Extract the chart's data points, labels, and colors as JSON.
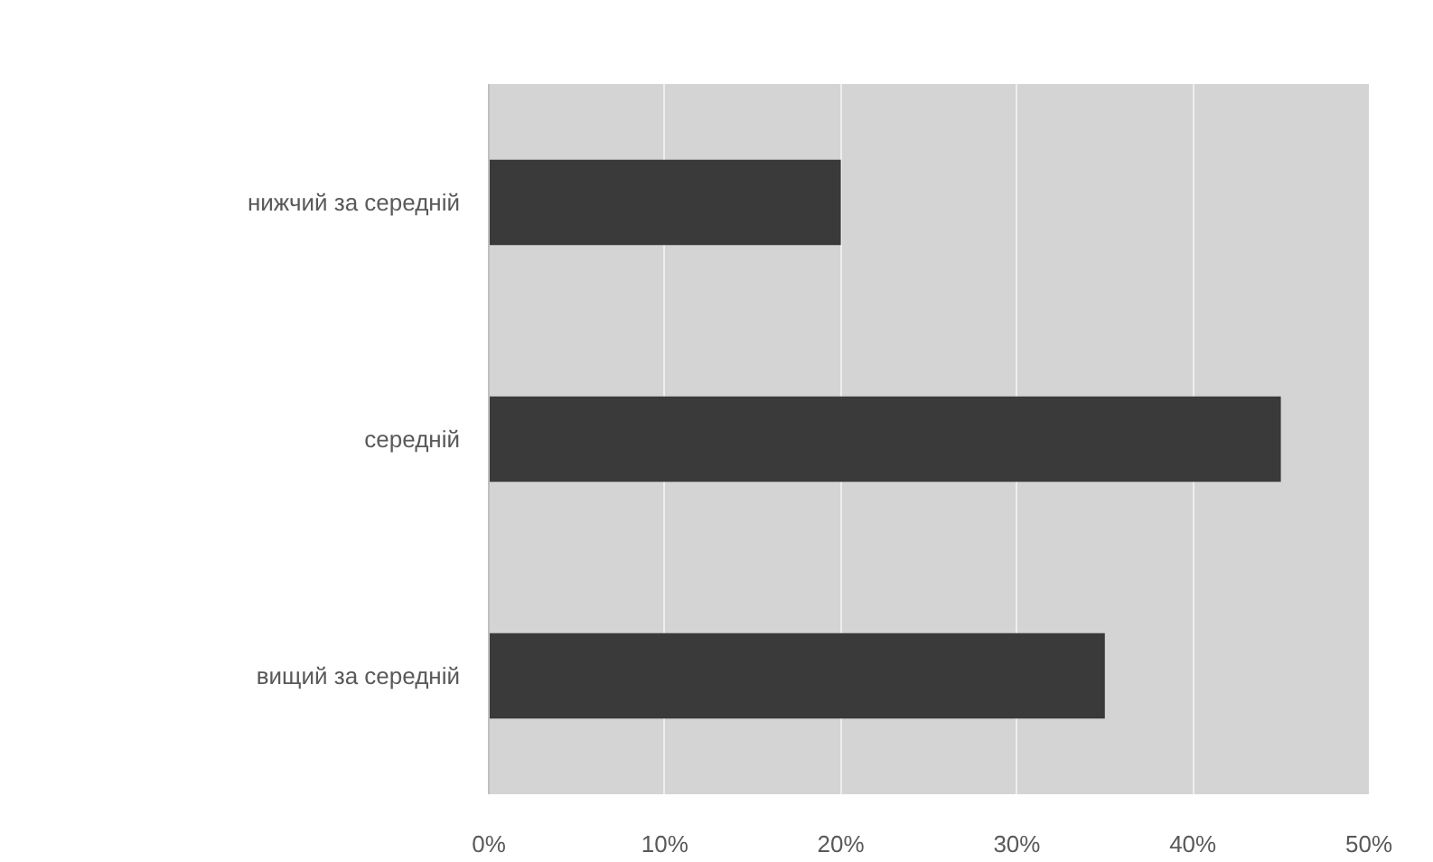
{
  "chart_data": {
    "type": "bar",
    "orientation": "horizontal",
    "categories": [
      "нижчий за середній",
      "середній",
      "вищий за середній"
    ],
    "values": [
      20,
      45,
      35
    ],
    "color": "#3a3a3a",
    "xlim": [
      0,
      50
    ],
    "xticks": [
      {
        "value": 0,
        "label": "0%"
      },
      {
        "value": 10,
        "label": "10%"
      },
      {
        "value": 20,
        "label": "20%"
      },
      {
        "value": 30,
        "label": "30%"
      },
      {
        "value": 40,
        "label": "40%"
      },
      {
        "value": 50,
        "label": "50%"
      }
    ],
    "grid": "x"
  }
}
